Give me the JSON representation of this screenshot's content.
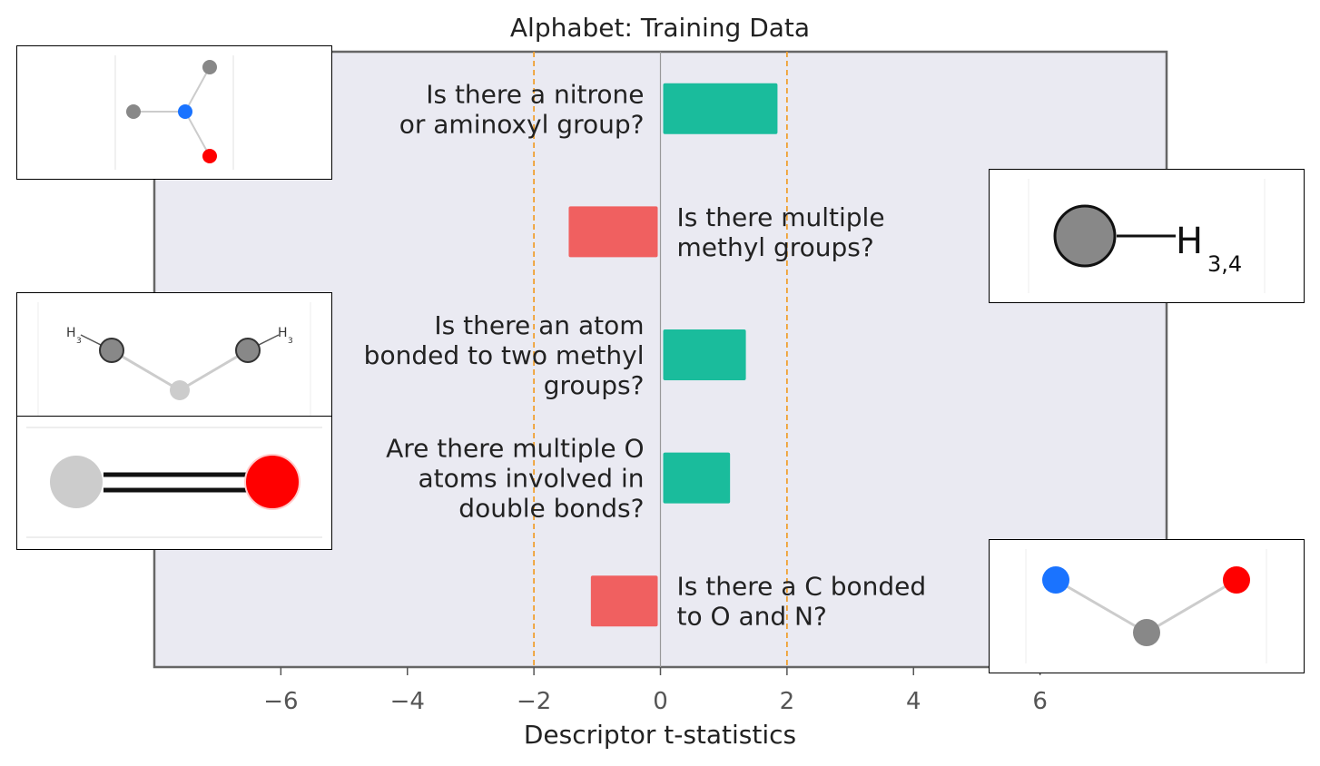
{
  "chart_data": {
    "type": "bar",
    "orientation": "horizontal",
    "title": "Alphabet: Training Data",
    "xlabel": "Descriptor t-statistics",
    "ylabel": "",
    "xlim": [
      -8.0,
      8.0
    ],
    "xticks": [
      -6,
      -4,
      -2,
      0,
      2,
      4,
      6
    ],
    "xtick_labels": [
      "−6",
      "−4",
      "−2",
      "0",
      "2",
      "4",
      "6"
    ],
    "grid": false,
    "reference_lines": [
      {
        "x": -2,
        "style": "dashed",
        "color": "#f0a030"
      },
      {
        "x": 2,
        "style": "dashed",
        "color": "#f0a030"
      },
      {
        "x": 0,
        "style": "solid",
        "color": "#999999"
      }
    ],
    "positive_color": "#1abc9c",
    "negative_color": "#f06060",
    "bars": [
      {
        "value": 1.85,
        "label_lines": [
          "Is there a nitrone",
          "or aminoxyl group?"
        ]
      },
      {
        "value": -1.45,
        "label_lines": [
          "Is there multiple",
          "methyl groups?"
        ]
      },
      {
        "value": 1.35,
        "label_lines": [
          "Is there an atom",
          "bonded to two methyl",
          "groups?"
        ]
      },
      {
        "value": 1.1,
        "label_lines": [
          "Are there multiple O",
          "atoms involved in",
          "double bonds?"
        ]
      },
      {
        "value": -1.1,
        "label_lines": [
          "Is there a C bonded",
          "to O and N?"
        ]
      }
    ]
  },
  "insets": {
    "methyl_label_main": "H",
    "methyl_label_sub": "3,4",
    "dimethyl_label_left": "H",
    "dimethyl_label_right": "H",
    "dimethyl_sub": "3"
  },
  "colors": {
    "plot_background": "#eaeaf2",
    "plot_border": "#666666",
    "atom_carbon": "#888888",
    "atom_nitrogen": "#1a73ff",
    "atom_oxygen": "#ff0000",
    "atom_any": "#cccccc"
  }
}
